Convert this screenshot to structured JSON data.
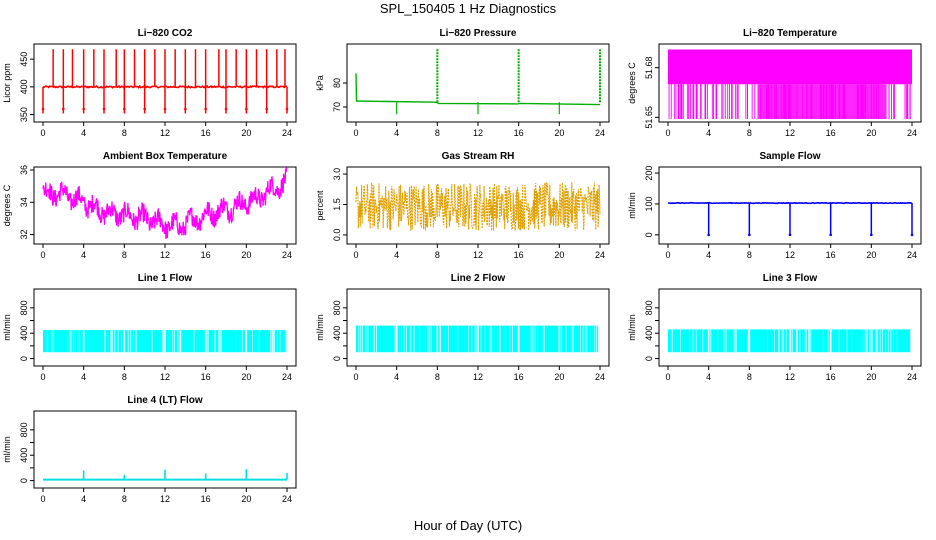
{
  "page": {
    "title": "SPL_150405  1 Hz Diagnostics",
    "xlabel": "Hour of Day (UTC)"
  },
  "chart_data": [
    {
      "type": "line",
      "title": "Li−820 CO2",
      "ylabel": "Licor ppm",
      "color": "#ff0000",
      "xlim": [
        0,
        24
      ],
      "xticks": [
        0,
        4,
        8,
        12,
        16,
        20,
        24
      ],
      "ylim": [
        342,
        472
      ],
      "yticks": [
        350,
        400,
        450
      ],
      "series": [
        {
          "baseline": 400,
          "noise": 3,
          "spikes_up": [
            1,
            2,
            2.9,
            4,
            5,
            6,
            7.2,
            8,
            9,
            10,
            11,
            12,
            13,
            14,
            15,
            16,
            17.3,
            18,
            19,
            20,
            21,
            22,
            23,
            23.8
          ],
          "spike_up_height": 468,
          "spikes_down": [
            0,
            2,
            4,
            6,
            8,
            10,
            12,
            14,
            16,
            18,
            20,
            22,
            24
          ],
          "spike_down_height": 352
        }
      ]
    },
    {
      "type": "line",
      "title": "Li−820 Pressure",
      "ylabel": "kPa",
      "color": "#00b000",
      "xlim": [
        0,
        24
      ],
      "xticks": [
        0,
        4,
        8,
        12,
        16,
        20,
        24
      ],
      "ylim": [
        65,
        95
      ],
      "yticks": [
        70,
        80
      ],
      "series": [
        {
          "segments": [
            [
              0,
              72.5
            ],
            [
              7.9,
              72.0
            ],
            [
              8.1,
              71.5
            ],
            [
              15.9,
              71.3
            ],
            [
              16.1,
              71.5
            ],
            [
              24,
              71.0
            ]
          ],
          "spikes_up": [
            8,
            16,
            24
          ],
          "spike_up_height": 95,
          "spikes_down": [
            4,
            12,
            20
          ],
          "spike_down_height": 67,
          "start_peak": 84
        }
      ]
    },
    {
      "type": "area",
      "title": "Li−820 Temperature",
      "ylabel": "degrees C",
      "color": "#ff00ff",
      "xlim": [
        0,
        24
      ],
      "xticks": [
        0,
        4,
        8,
        12,
        16,
        20,
        24
      ],
      "ylim": [
        51.649,
        51.6925
      ],
      "yticks": [
        51.65,
        51.68
      ],
      "series": [
        {
          "high": 51.691,
          "low": 51.67,
          "floor": 51.649
        }
      ]
    },
    {
      "type": "area",
      "title": "Ambient Box Temperature",
      "ylabel": "degrees C",
      "color": "#ff00ff",
      "xlim": [
        0,
        24
      ],
      "xticks": [
        0,
        4,
        8,
        12,
        16,
        20,
        24
      ],
      "ylim": [
        31.6,
        36
      ],
      "yticks": [
        32,
        34,
        36
      ],
      "series": [
        {
          "center": [
            [
              0,
              34.6
            ],
            [
              2,
              34.5
            ],
            [
              4,
              34.0
            ],
            [
              6,
              33.4
            ],
            [
              8,
              33.2
            ],
            [
              10,
              33.0
            ],
            [
              12,
              32.6
            ],
            [
              13.5,
              32.5
            ],
            [
              15,
              33.0
            ],
            [
              17,
              33.4
            ],
            [
              19,
              33.8
            ],
            [
              21,
              34.2
            ],
            [
              23,
              35.0
            ],
            [
              24,
              35.2
            ]
          ],
          "band": 0.6
        }
      ]
    },
    {
      "type": "area",
      "title": "Gas Stream RH",
      "ylabel": "percent",
      "color": "#e0a000",
      "xlim": [
        0,
        24
      ],
      "xticks": [
        0,
        4,
        8,
        12,
        16,
        20,
        24
      ],
      "ylim": [
        -0.3,
        3.2
      ],
      "yticks": [
        0.0,
        1.0,
        2.0,
        3.0
      ],
      "ytick_labels": [
        "0.0",
        "1.5",
        "3.0"
      ],
      "ytick_values": [
        0.0,
        1.5,
        3.0
      ],
      "series": [
        {
          "center": 1.4,
          "band": 1.2
        }
      ]
    },
    {
      "type": "line",
      "title": "Sample Flow",
      "ylabel": "ml/min",
      "color": "#0000ff",
      "xlim": [
        0,
        24
      ],
      "xticks": [
        0,
        4,
        8,
        12,
        16,
        20,
        24
      ],
      "ylim": [
        -20,
        210
      ],
      "yticks": [
        0,
        100,
        200
      ],
      "series": [
        {
          "baseline": 103,
          "noise": 2,
          "spikes_down": [
            4,
            8,
            12,
            16,
            20,
            24
          ],
          "spike_down_height": 0
        }
      ]
    },
    {
      "type": "area",
      "title": "Line 1 Flow",
      "ylabel": "ml/min",
      "color": "#00ffff",
      "xlim": [
        0,
        24
      ],
      "xticks": [
        0,
        4,
        8,
        12,
        16,
        20,
        24
      ],
      "ylim": [
        -70,
        1050
      ],
      "yticks": [
        0,
        200,
        400,
        600,
        800
      ],
      "ytick_labels_shown": [
        0,
        400,
        800
      ],
      "series": [
        {
          "high": 450,
          "low": 100,
          "gaps": [
            4,
            8,
            12,
            16,
            20,
            23.9
          ]
        }
      ]
    },
    {
      "type": "area",
      "title": "Line 2 Flow",
      "ylabel": "ml/min",
      "color": "#00ffff",
      "xlim": [
        0,
        24
      ],
      "xticks": [
        0,
        4,
        8,
        12,
        16,
        20,
        24
      ],
      "ylim": [
        -70,
        1050
      ],
      "yticks": [
        0,
        200,
        400,
        600,
        800
      ],
      "ytick_labels_shown": [
        0,
        400,
        800
      ],
      "series": [
        {
          "high": 520,
          "low": 100,
          "gaps": [
            4,
            8,
            12,
            16,
            20,
            23.9
          ]
        }
      ]
    },
    {
      "type": "area",
      "title": "Line 3 Flow",
      "ylabel": "ml/min",
      "color": "#00ffff",
      "xlim": [
        0,
        24
      ],
      "xticks": [
        0,
        4,
        8,
        12,
        16,
        20,
        24
      ],
      "ylim": [
        -70,
        1050
      ],
      "yticks": [
        0,
        200,
        400,
        600,
        800
      ],
      "ytick_labels_shown": [
        0,
        400,
        800
      ],
      "series": [
        {
          "high": 460,
          "low": 100,
          "gaps": [
            4,
            8,
            12,
            16,
            20,
            23.9
          ]
        }
      ]
    },
    {
      "type": "line",
      "title": "Line 4 (LT) Flow",
      "ylabel": "ml/min",
      "color": "#00e0e0",
      "xlim": [
        0,
        24
      ],
      "xticks": [
        0,
        4,
        8,
        12,
        16,
        20,
        24
      ],
      "ylim": [
        -70,
        1050
      ],
      "yticks": [
        0,
        200,
        400,
        600,
        800
      ],
      "ytick_labels_shown": [
        0,
        400,
        800
      ],
      "series": [
        {
          "baseline": 15,
          "spikes_up": [
            4,
            8,
            12,
            16,
            20,
            24
          ],
          "spike_up_heights": [
            160,
            90,
            170,
            110,
            180,
            120
          ]
        }
      ]
    }
  ]
}
